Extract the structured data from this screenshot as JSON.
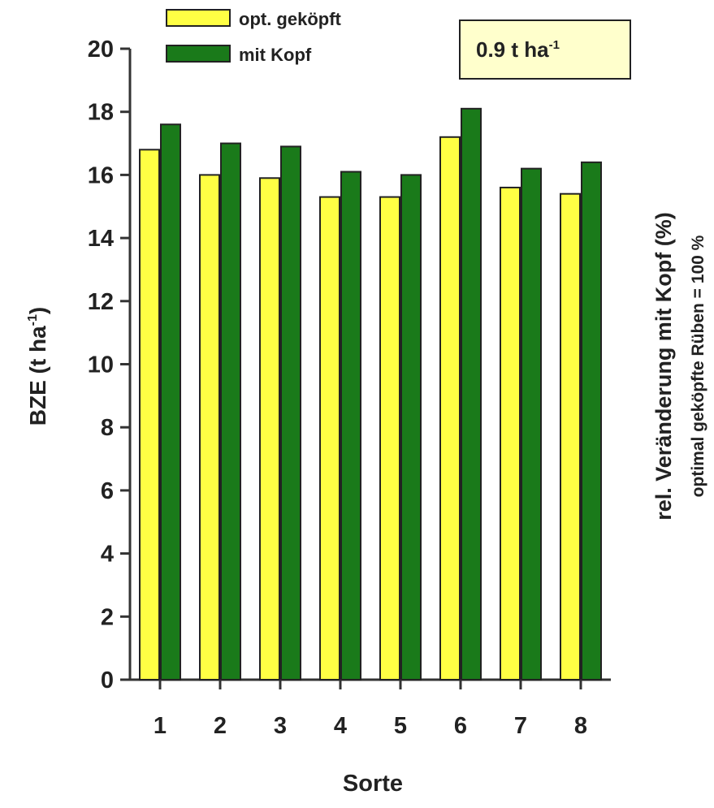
{
  "chart_data": {
    "type": "bar",
    "title": "",
    "xlabel": "Sorte",
    "ylabel": "BZE (t ha",
    "ylabel_sup": "-1",
    "ylabel_close": ")",
    "y2label": "rel. Veränderung mit Kopf (%)",
    "y2label_sub": "optimal geköpfte Rüben = 100 %",
    "annotation": "0.9 t ha",
    "annotation_sup": "-1",
    "ylim": [
      0,
      20
    ],
    "yticks": [
      "0",
      "2",
      "4",
      "6",
      "8",
      "10",
      "12",
      "14",
      "16",
      "18",
      "20"
    ],
    "categories": [
      "1",
      "2",
      "3",
      "4",
      "5",
      "6",
      "7",
      "8"
    ],
    "grid": false,
    "legend_position": "top-left",
    "series": [
      {
        "name": "opt. geköpft",
        "color": "#ffff44",
        "values": [
          16.8,
          16.0,
          15.9,
          15.3,
          15.3,
          17.2,
          15.6,
          15.4
        ]
      },
      {
        "name": "mit Kopf",
        "color": "#1a7a1a",
        "values": [
          17.6,
          17.0,
          16.9,
          16.1,
          16.0,
          18.1,
          16.2,
          16.4
        ]
      }
    ],
    "annotation_background": "#ffffcc"
  }
}
